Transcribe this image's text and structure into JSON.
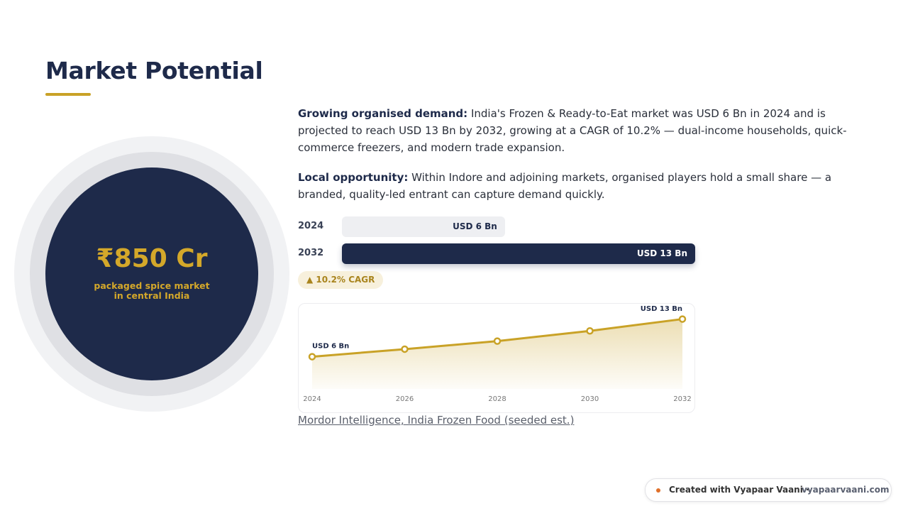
{
  "title": "Market Potential",
  "stat": {
    "value": "₹850 Cr",
    "caption": "packaged spice market in central India"
  },
  "paragraphs": [
    {
      "lead": "Growing organised demand:",
      "text": "India's Frozen & Ready-to-Eat market was USD 6 Bn in 2024 and is projected to reach USD 13 Bn by 2032, growing at a CAGR of 10.2% — dual-income households, quick-commerce freezers, and modern trade expansion."
    },
    {
      "lead": "Local opportunity:",
      "text": "Within Indore and adjoining markets, organised players hold a small share — a branded, quality-led entrant can capture demand quickly."
    }
  ],
  "chart_data": [
    {
      "type": "bar",
      "categories": [
        "2024",
        "2032"
      ],
      "values": [
        6,
        13
      ],
      "value_labels": [
        "USD 6 Bn",
        "USD 13 Bn"
      ],
      "colors": [
        "#eeeff2",
        "#1e2a4a"
      ],
      "xlim": [
        0,
        13
      ],
      "annotation": "▲ 10.2% CAGR"
    },
    {
      "type": "line",
      "x": [
        2024,
        2026,
        2028,
        2030,
        2032
      ],
      "values": [
        6,
        7.4,
        8.9,
        10.8,
        13
      ],
      "value_labels": [
        "USD 6 Bn",
        null,
        null,
        null,
        "USD 13 Bn"
      ],
      "color": "#c9a227",
      "xlim": [
        2024,
        2032
      ],
      "xticks": [
        2024,
        2026,
        2028,
        2030,
        2032
      ],
      "ylim": [
        0,
        14
      ]
    }
  ],
  "source": "Mordor Intelligence, India Frozen Food (seeded est.)",
  "footer": {
    "text": "Created with Vyapaar Vaani ·",
    "link": "vyapaarvaani.com"
  }
}
